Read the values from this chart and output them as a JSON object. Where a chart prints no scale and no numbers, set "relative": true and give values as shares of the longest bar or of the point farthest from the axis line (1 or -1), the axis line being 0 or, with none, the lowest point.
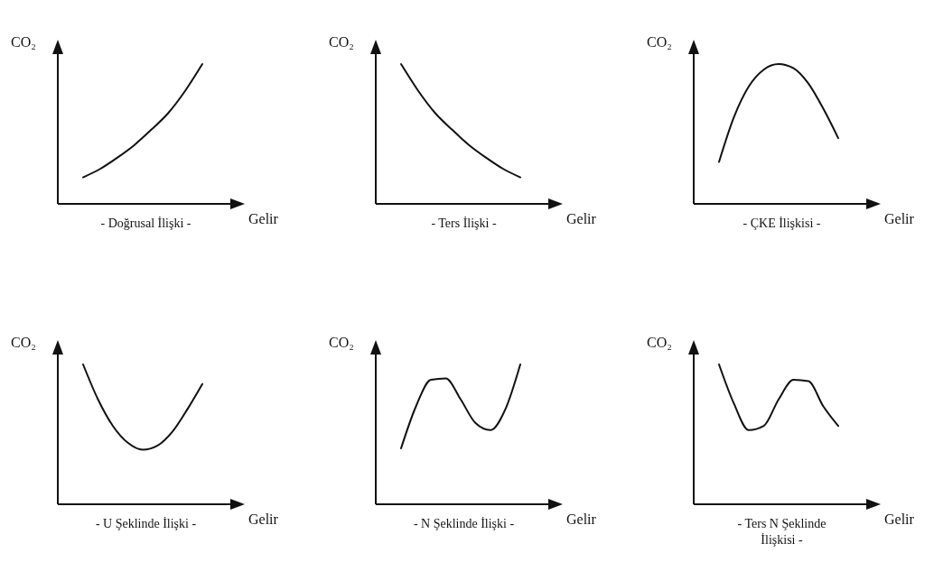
{
  "chart_data": [
    {
      "type": "line",
      "relative": true,
      "title": "- Doğrusal İlişki -",
      "xlabel": "Gelir",
      "ylabel": "CO₂",
      "categories": [
        null,
        null,
        null,
        null,
        null,
        null,
        null,
        null
      ],
      "series": [
        {
          "color": "#111111",
          "values": [
            0.19,
            0.25,
            0.33,
            0.42,
            0.53,
            0.65,
            0.81,
            1
          ]
        }
      ]
    },
    {
      "type": "line",
      "relative": true,
      "title": "- Ters İlişki -",
      "xlabel": "Gelir",
      "ylabel": "CO₂",
      "categories": [
        null,
        null,
        null,
        null,
        null,
        null,
        null,
        null
      ],
      "series": [
        {
          "color": "#111111",
          "values": [
            1,
            0.81,
            0.65,
            0.53,
            0.42,
            0.33,
            0.25,
            0.19
          ]
        }
      ]
    },
    {
      "type": "line",
      "relative": true,
      "title": "- ÇKE İlişkisi -",
      "xlabel": "Gelir",
      "ylabel": "CO₂",
      "categories": [
        null,
        null,
        null,
        null,
        null,
        null,
        null,
        null,
        null
      ],
      "series": [
        {
          "color": "#111111",
          "values": [
            0.3,
            0.62,
            0.84,
            0.96,
            1,
            0.97,
            0.86,
            0.68,
            0.47
          ]
        }
      ]
    },
    {
      "type": "line",
      "relative": true,
      "title": "- U Şeklinde İlişki -",
      "xlabel": "Gelir",
      "ylabel": "CO₂",
      "categories": [
        null,
        null,
        null,
        null,
        null,
        null,
        null,
        null,
        null
      ],
      "series": [
        {
          "color": "#111111",
          "values": [
            1,
            0.75,
            0.56,
            0.44,
            0.39,
            0.42,
            0.52,
            0.68,
            0.86
          ]
        }
      ]
    },
    {
      "type": "line",
      "relative": true,
      "title": "- N Şeklinde İlişki -",
      "xlabel": "Gelir",
      "ylabel": "CO₂",
      "categories": [
        null,
        null,
        null,
        null,
        null,
        null,
        null,
        null,
        null
      ],
      "series": [
        {
          "color": "#111111",
          "values": [
            0.4,
            0.7,
            0.89,
            0.9,
            0.75,
            0.58,
            0.53,
            0.68,
            1
          ]
        }
      ]
    },
    {
      "type": "line",
      "relative": true,
      "title": "- Ters N Şeklinde İlişkisi -",
      "xlabel": "Gelir",
      "ylabel": "CO₂",
      "categories": [
        null,
        null,
        null,
        null,
        null,
        null,
        null,
        null,
        null
      ],
      "series": [
        {
          "color": "#111111",
          "values": [
            1,
            0.72,
            0.53,
            0.56,
            0.75,
            0.89,
            0.88,
            0.7,
            0.56
          ]
        }
      ]
    }
  ]
}
